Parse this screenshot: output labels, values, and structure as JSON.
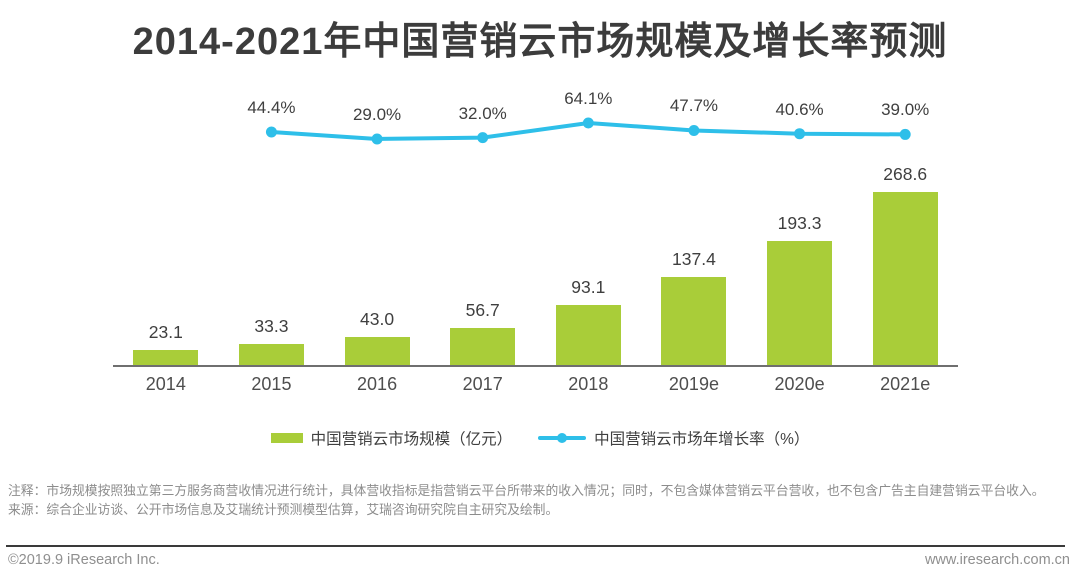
{
  "title": "2014-2021年中国营销云市场规模及增长率预测",
  "chart_data": {
    "type": "bar",
    "title": "2014-2021年中国营销云市场规模及增长率预测",
    "categories": [
      "2014",
      "2015",
      "2016",
      "2017",
      "2018",
      "2019e",
      "2020e",
      "2021e"
    ],
    "series": [
      {
        "name": "中国营销云市场规模（亿元）",
        "type": "bar",
        "color": "#a9cd39",
        "values": [
          23.1,
          33.3,
          43.0,
          56.7,
          93.1,
          137.4,
          193.3,
          268.6
        ],
        "labels": [
          "23.1",
          "33.3",
          "43.0",
          "56.7",
          "93.1",
          "137.4",
          "193.3",
          "268.6"
        ]
      },
      {
        "name": "中国营销云市场年增长率（%）",
        "type": "line",
        "color": "#2ebfe9",
        "categories": [
          "2015",
          "2016",
          "2017",
          "2018",
          "2019e",
          "2020e",
          "2021e"
        ],
        "values": [
          44.4,
          29.0,
          32.0,
          64.1,
          47.7,
          40.6,
          39.0
        ],
        "labels": [
          "44.4%",
          "29.0%",
          "32.0%",
          "64.1%",
          "47.7%",
          "40.6%",
          "39.0%"
        ]
      }
    ],
    "ylim": [
      0,
      300
    ],
    "grid": false,
    "legend_position": "bottom"
  },
  "legend": {
    "bar_label": "中国营销云市场规模（亿元）",
    "line_label": "中国营销云市场年增长率（%）"
  },
  "notes": {
    "annotation": "注释：市场规模按照独立第三方服务商营收情况进行统计，具体营收指标是指营销云平台所带来的收入情况；同时，不包含媒体营销云平台营收，也不包含广告主自建营销云平台收入。",
    "source": "来源：综合企业访谈、公开市场信息及艾瑞统计预测模型估算，艾瑞咨询研究院自主研究及绘制。"
  },
  "footer": {
    "left": "©2019.9 iResearch Inc.",
    "right": "www.iresearch.com.cn"
  },
  "colors": {
    "bar": "#a9cd39",
    "line": "#2ebfe9",
    "title_text": "#3c3c3c",
    "note_text": "#8c8c8c"
  }
}
